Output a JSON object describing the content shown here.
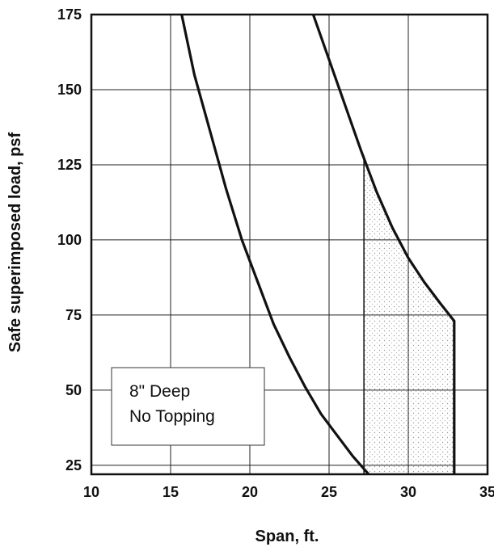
{
  "chart_data": {
    "type": "line",
    "xlabel": "Span, ft.",
    "ylabel": "Safe superimposed load, psf",
    "xlim": [
      10,
      35
    ],
    "ylim": [
      22,
      175
    ],
    "x_ticks": [
      "10",
      "15",
      "20",
      "25",
      "30",
      "35"
    ],
    "y_ticks": [
      "25",
      "50",
      "75",
      "100",
      "125",
      "150",
      "175"
    ],
    "grid": true,
    "annotation": [
      "8\" Deep",
      "No Topping"
    ],
    "series": [
      {
        "x": [
          15.7,
          16.5,
          17.5,
          18.5,
          19.5,
          20.5,
          21.5,
          22.5,
          23.5,
          24.5,
          25.5,
          26.5,
          27.5
        ],
        "y": [
          175,
          155,
          136,
          117,
          100,
          86,
          72,
          61,
          51,
          42,
          35,
          28,
          22
        ],
        "color": "#111111"
      },
      {
        "x": [
          24.0,
          25.0,
          26.0,
          27.0,
          28.0,
          29.0,
          30.0,
          31.0,
          32.0,
          32.9,
          32.9,
          32.9
        ],
        "y": [
          175,
          160,
          145,
          130,
          116,
          104,
          94,
          86,
          79,
          73,
          50,
          22
        ],
        "color": "#111111"
      }
    ],
    "shaded_region": {
      "x_left": 27.2,
      "y_bottom": 22,
      "x_top_start": 27.2,
      "y_top_start": 128
    },
    "shade_color": "#c7c7c7"
  }
}
